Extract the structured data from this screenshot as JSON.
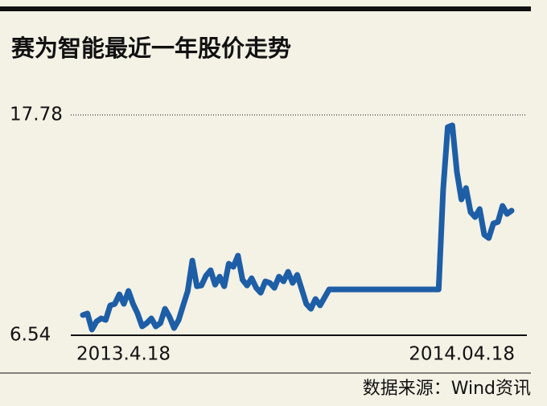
{
  "chart_data": {
    "type": "line",
    "title": "赛为智能最近一年股价走势",
    "source": "数据来源：Wind资讯",
    "categories": [
      "2013.4.18",
      null,
      null,
      null,
      null,
      null,
      null,
      null,
      null,
      null,
      null,
      null,
      null,
      null,
      null,
      null,
      null,
      null,
      null,
      null,
      null,
      null,
      null,
      null,
      null,
      null,
      null,
      null,
      null,
      null,
      null,
      null,
      null,
      null,
      null,
      null,
      null,
      null,
      null,
      null,
      null,
      null,
      null,
      null,
      null,
      null,
      null,
      null,
      null,
      null,
      null,
      null,
      null,
      null,
      null,
      null,
      null,
      null,
      null,
      null,
      null,
      null,
      null,
      null,
      null,
      null,
      null,
      null,
      null,
      null,
      null,
      null,
      null,
      null,
      null,
      null,
      null,
      null,
      null,
      null,
      null,
      null,
      null,
      null,
      null,
      null,
      null,
      null,
      null,
      null,
      null,
      null,
      null,
      null,
      "2014.04.18"
    ],
    "values": [
      7.57,
      7.65,
      6.83,
      7.24,
      7.4,
      7.32,
      8.06,
      8.14,
      8.63,
      8.14,
      8.8,
      8.14,
      7.65,
      6.99,
      7.16,
      7.4,
      6.99,
      7.16,
      7.89,
      7.48,
      6.91,
      7.32,
      8.06,
      8.8,
      10.35,
      9.04,
      9.08,
      9.58,
      9.86,
      9.12,
      9.53,
      9.04,
      10.19,
      10.03,
      10.6,
      9.37,
      9.08,
      9.45,
      8.96,
      8.71,
      9.29,
      9.21,
      8.96,
      9.53,
      9.29,
      9.78,
      9.21,
      9.62,
      8.88,
      8.14,
      7.89,
      8.39,
      8.06,
      8.47,
      8.88,
      8.88,
      8.88,
      8.88,
      8.88,
      8.88,
      8.88,
      8.88,
      8.88,
      8.88,
      8.88,
      8.88,
      8.88,
      8.88,
      8.88,
      8.88,
      8.88,
      8.88,
      8.88,
      8.88,
      8.88,
      8.88,
      8.88,
      8.88,
      8.88,
      13.96,
      17.16,
      17.25,
      14.87,
      13.47,
      14.05,
      12.82,
      12.57,
      12.98,
      11.67,
      11.5,
      12.24,
      12.32,
      13.14,
      12.73,
      12.9
    ],
    "color": "#1d5ea6",
    "ylim": [
      6.54,
      17.78
    ],
    "yticks": [
      6.54,
      17.78
    ]
  }
}
